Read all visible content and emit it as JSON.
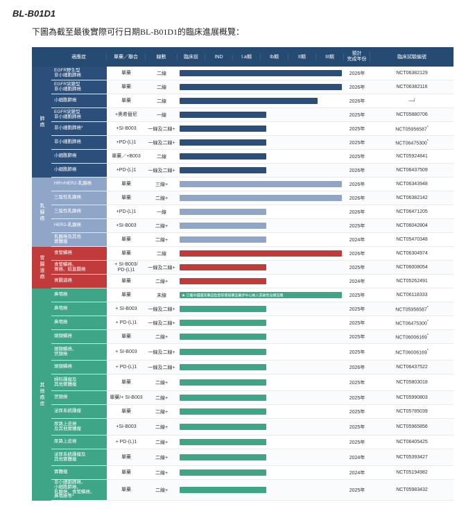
{
  "title": "BL-B01D1",
  "subtitle": "下圖為截至最後實際可行日期BL-B01D1的臨床進展概覽：",
  "headers": {
    "indication": "適應症",
    "agent": "單藥／聯合",
    "line": "線數",
    "preclinical": "臨床前",
    "ind": "IND",
    "p1a": "I.a期",
    "p1b": "Ib期",
    "p2": "II期",
    "p3": "III期",
    "year": "預計\n完成年份",
    "nct": "臨床試驗編號"
  },
  "groups": [
    {
      "label": "肺癌",
      "cat_color": "#2b4f7a",
      "ind_bg": "#2b4f7a",
      "bar_color": "#2b4f7a",
      "rows": [
        {
          "ind": "EGFR野生型\n非小細胞肺癌",
          "agent": "單藥",
          "line": "二線",
          "bar": 6,
          "year": "2026年",
          "nct": "NCT06382129"
        },
        {
          "ind": "EGFR突變型\n非小細胞肺癌",
          "agent": "單藥",
          "line": "二線",
          "bar": 6,
          "year": "2026年",
          "nct": "NCT06382116"
        },
        {
          "ind": "小細胞肺癌",
          "agent": "單藥",
          "line": "二線",
          "bar": 5.1,
          "year": "2026年",
          "nct": "—/"
        },
        {
          "ind": "EGFR突變型\n非小細胞肺癌",
          "agent": "+奧希替尼",
          "line": "一線",
          "bar": 3.2,
          "year": "2025年",
          "nct": "NCT05880706"
        },
        {
          "ind": "非小細胞肺癌*",
          "agent": "+SI-B003",
          "line": "一線及二線+",
          "bar": 3.2,
          "year": "2025年",
          "nct": "NCT05956587*"
        },
        {
          "ind": "非小細胞肺癌",
          "agent": "+PD-(L)1",
          "line": "一線及二線+",
          "bar": 3.2,
          "year": "2025年",
          "nct": "NCT06475300*"
        },
        {
          "ind": "小細胞肺癌",
          "agent": "單藥／+B003",
          "line": "二線",
          "bar": 3.2,
          "year": "2025年",
          "nct": "NCT05924841"
        },
        {
          "ind": "小細胞肺癌",
          "agent": "+PD-(L)1",
          "line": "一線及二線+",
          "bar": 3.2,
          "year": "2026年",
          "nct": "NCT06437509"
        }
      ]
    },
    {
      "label": "乳腺癌",
      "cat_color": "#8fa6c9",
      "ind_bg": "#8fa6c9",
      "bar_color": "#8fa6c9",
      "rows": [
        {
          "ind": "HR+/HER2-乳腺癌",
          "agent": "單藥",
          "line": "三線+",
          "bar": 6,
          "year": "2026年",
          "nct": "NCT06343948"
        },
        {
          "ind": "三陰性乳腺癌",
          "agent": "單藥",
          "line": "二線+",
          "bar": 6,
          "year": "2026年",
          "nct": "NCT06382142"
        },
        {
          "ind": "三陰性乳腺癌",
          "agent": "+PD-(L)1",
          "line": "一線",
          "bar": 3.2,
          "year": "2026年",
          "nct": "NCT06471205"
        },
        {
          "ind": "HER2-乳腺癌",
          "agent": "+SI-B003",
          "line": "二線+",
          "bar": 3.2,
          "year": "2025年",
          "nct": "NCT06042804"
        },
        {
          "ind": "乳腺癌及其他\n實體瘤",
          "agent": "單藥",
          "line": "二線+",
          "bar": 3.2,
          "year": "2024年",
          "nct": "NCT05470348"
        }
      ]
    },
    {
      "label": "胃腸道癌",
      "cat_color": "#c23b3b",
      "ind_bg": "#c23b3b",
      "bar_color": "#c23b3b",
      "rows": [
        {
          "ind": "食管鱗癌",
          "agent": "單藥",
          "line": "二線",
          "bar": 6,
          "year": "2026年",
          "nct": "NCT06304974"
        },
        {
          "ind": "食管鱗癌、\n胃癌、結直腸癌",
          "agent": "+ SI-B003/\nPD-(L)1",
          "line": "一線及二線+",
          "bar": 3.2,
          "year": "2025年",
          "nct": "NCT06008054"
        },
        {
          "ind": "胃腸道癌",
          "agent": "單藥",
          "line": "二線+",
          "bar": 3.2,
          "year": "2024年",
          "nct": "NCT05262491"
        }
      ]
    },
    {
      "label": "其他癌症",
      "cat_color": "#3ea587",
      "ind_bg": "#3ea587",
      "bar_color": "#3ea587",
      "rows": [
        {
          "ind": "鼻咽癌",
          "agent": "單藥",
          "line": "末線",
          "bar": 6,
          "year": "2025年",
          "nct": "NCT06118333",
          "note": "★ 已獲中國國家藥品監督管理局藥品審評中心納入突破性治療品種"
        },
        {
          "ind": "鼻咽癌",
          "agent": "+ SI-B003",
          "line": "一線及二線+",
          "bar": 3.2,
          "year": "2025年",
          "nct": "NCT05956587*"
        },
        {
          "ind": "鼻咽癌",
          "agent": "+ PD-(L)1",
          "line": "一線及二線+",
          "bar": 3.2,
          "year": "2025年",
          "nct": "NCT06475300*"
        },
        {
          "ind": "頭頸鱗癌",
          "agent": "單藥",
          "line": "二線+",
          "bar": 3.2,
          "year": "2025年",
          "nct": "NCT06006169*"
        },
        {
          "ind": "頭頸鱗癌、\n宮頸癌",
          "agent": "+ SI-B003",
          "line": "一線及二線+",
          "bar": 3.2,
          "year": "2025年",
          "nct": "NCT06006169*"
        },
        {
          "ind": "頭頸鱗癌",
          "agent": "+ PD-(L)1",
          "line": "一線及二線+",
          "bar": 3.2,
          "year": "2026年",
          "nct": "NCT06437522"
        },
        {
          "ind": "婦科腫瘤及\n其他實體瘤",
          "agent": "單藥",
          "line": "二線+",
          "bar": 3.2,
          "year": "2025年",
          "nct": "NCT05803018"
        },
        {
          "ind": "宮頸癌",
          "agent": "單藥/+ SI-B003",
          "line": "二線+",
          "bar": 3.2,
          "year": "2025年",
          "nct": "NCT05990803"
        },
        {
          "ind": "泌尿系統腫瘤",
          "agent": "單藥",
          "line": "二線+",
          "bar": 3.2,
          "year": "2025年",
          "nct": "NCT05785039"
        },
        {
          "ind": "尿路上皮癌\n及其他實體瘤",
          "agent": "+SI-B003",
          "line": "二線+",
          "bar": 3.2,
          "year": "2025年",
          "nct": "NCT05965856"
        },
        {
          "ind": "尿路上皮癌",
          "agent": "+ PD-(L)1",
          "line": "二線+",
          "bar": 3.2,
          "year": "2025年",
          "nct": "NCT06405425"
        },
        {
          "ind": "泌尿系統腫瘤及\n其他實體瘤",
          "agent": "單藥",
          "line": "二線+",
          "bar": 3.2,
          "year": "2024年",
          "nct": "NCT05393427"
        },
        {
          "ind": "實體瘤",
          "agent": "單藥",
          "line": "二線+",
          "bar": 3.2,
          "year": "2024年",
          "nct": "NCT05194982"
        },
        {
          "ind": "非小細胞肺癌、\n小細胞肺癌、\n乳腺癌、食管鱗癌、\n鼻咽癌等*",
          "agent": "單藥",
          "line": "二線+",
          "bar": 3.2,
          "year": "2025年",
          "nct": "NCT05983432"
        }
      ]
    }
  ]
}
